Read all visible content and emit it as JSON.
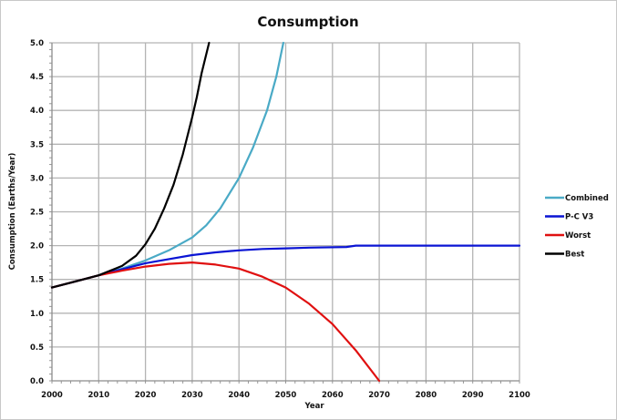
{
  "chart_data": {
    "type": "line",
    "title": "Consumption",
    "xlabel": "Year",
    "ylabel": "Consumption (Earths/Year)",
    "xlim": [
      2000,
      2100
    ],
    "ylim": [
      0,
      5
    ],
    "grid": true,
    "legend_position": "right",
    "x_ticks": [
      "2000",
      "2010",
      "2020",
      "2030",
      "2040",
      "2050",
      "2060",
      "2070",
      "2080",
      "2090",
      "2100"
    ],
    "y_ticks": [
      "0.0",
      "0.5",
      "1.0",
      "1.5",
      "2.0",
      "2.5",
      "3.0",
      "3.5",
      "4.0",
      "4.5",
      "5.0"
    ],
    "series": [
      {
        "name": "Combined",
        "color": "#4aaac6",
        "points": [
          [
            2000,
            1.38
          ],
          [
            2005,
            1.47
          ],
          [
            2010,
            1.56
          ],
          [
            2015,
            1.66
          ],
          [
            2020,
            1.78
          ],
          [
            2025,
            1.93
          ],
          [
            2030,
            2.12
          ],
          [
            2033,
            2.3
          ],
          [
            2036,
            2.55
          ],
          [
            2040,
            3.0
          ],
          [
            2043,
            3.45
          ],
          [
            2046,
            4.0
          ],
          [
            2048,
            4.5
          ],
          [
            2049.5,
            5.0
          ]
        ]
      },
      {
        "name": "P-C V3",
        "color": "#0a14d4",
        "points": [
          [
            2000,
            1.38
          ],
          [
            2005,
            1.47
          ],
          [
            2010,
            1.56
          ],
          [
            2015,
            1.65
          ],
          [
            2020,
            1.74
          ],
          [
            2025,
            1.8
          ],
          [
            2030,
            1.86
          ],
          [
            2035,
            1.9
          ],
          [
            2040,
            1.93
          ],
          [
            2045,
            1.95
          ],
          [
            2050,
            1.96
          ],
          [
            2055,
            1.97
          ],
          [
            2063,
            1.98
          ],
          [
            2065,
            2.0
          ],
          [
            2100,
            2.0
          ]
        ]
      },
      {
        "name": "Worst",
        "color": "#e01010",
        "points": [
          [
            2000,
            1.38
          ],
          [
            2005,
            1.47
          ],
          [
            2010,
            1.56
          ],
          [
            2015,
            1.63
          ],
          [
            2020,
            1.69
          ],
          [
            2025,
            1.73
          ],
          [
            2030,
            1.75
          ],
          [
            2035,
            1.72
          ],
          [
            2040,
            1.66
          ],
          [
            2045,
            1.54
          ],
          [
            2050,
            1.38
          ],
          [
            2055,
            1.14
          ],
          [
            2060,
            0.84
          ],
          [
            2065,
            0.45
          ],
          [
            2070,
            0.0
          ]
        ]
      },
      {
        "name": "Best",
        "color": "#000000",
        "points": [
          [
            2000,
            1.38
          ],
          [
            2005,
            1.47
          ],
          [
            2010,
            1.56
          ],
          [
            2015,
            1.7
          ],
          [
            2018,
            1.85
          ],
          [
            2020,
            2.02
          ],
          [
            2022,
            2.25
          ],
          [
            2024,
            2.55
          ],
          [
            2026,
            2.9
          ],
          [
            2028,
            3.35
          ],
          [
            2030,
            3.9
          ],
          [
            2031,
            4.2
          ],
          [
            2032,
            4.55
          ],
          [
            2033.6,
            5.0
          ]
        ]
      }
    ]
  }
}
